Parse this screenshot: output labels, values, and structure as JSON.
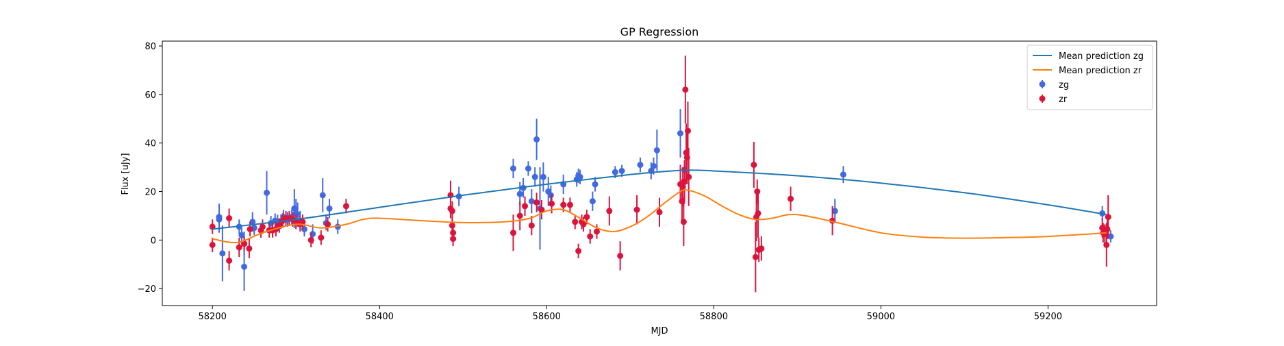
{
  "chart_data": {
    "type": "scatter",
    "title": "GP Regression",
    "xlabel": "MJD",
    "ylabel": "Flux [uJy]",
    "xlim": [
      58140,
      59330
    ],
    "ylim": [
      -27,
      82
    ],
    "xticks": [
      58200,
      58400,
      58600,
      58800,
      59000,
      59200
    ],
    "yticks": [
      -20,
      0,
      20,
      40,
      60,
      80
    ],
    "grid": false,
    "legend_position": "top-right",
    "series": [
      {
        "name": "Mean prediction zg",
        "kind": "line",
        "color": "#1f77b4",
        "x": [
          58200,
          58300,
          58400,
          58500,
          58600,
          58700,
          58750,
          58770,
          58800,
          58900,
          59000,
          59100,
          59200,
          59270
        ],
        "y": [
          4.5,
          8.5,
          13.5,
          18.5,
          23,
          27,
          28.5,
          28.8,
          28.5,
          26.5,
          23.5,
          19.5,
          14.5,
          10.5
        ]
      },
      {
        "name": "Mean prediction zr",
        "kind": "line",
        "color": "#ff7f0e",
        "x": [
          58200,
          58230,
          58260,
          58300,
          58330,
          58360,
          58380,
          58400,
          58450,
          58500,
          58550,
          58580,
          58600,
          58620,
          58640,
          58660,
          58680,
          58700,
          58720,
          58740,
          58760,
          58770,
          58790,
          58810,
          58830,
          58850,
          58870,
          58890,
          58910,
          58950,
          59000,
          59050,
          59100,
          59150,
          59200,
          59250,
          59270
        ],
        "y": [
          0.5,
          -1,
          3,
          6.5,
          5,
          6.5,
          8.5,
          9,
          8,
          7.2,
          7.5,
          9,
          12,
          12.5,
          9,
          5,
          3.5,
          5.5,
          9.5,
          15,
          20,
          20.5,
          18,
          14,
          10.5,
          8.5,
          9,
          10.5,
          10,
          7,
          3,
          1.2,
          0.8,
          1,
          1.5,
          2.5,
          3
        ]
      },
      {
        "name": "zg",
        "kind": "errorbar",
        "color": "#4169e1",
        "x": [
          58208,
          58208,
          58212,
          58232,
          58235,
          58238,
          58238,
          58248,
          58250,
          58265,
          58270,
          58275,
          58278,
          58282,
          58285,
          58290,
          58295,
          58298,
          58300,
          58302,
          58305,
          58310,
          58320,
          58332,
          58336,
          58340,
          58350,
          58495,
          58560,
          58568,
          58572,
          58578,
          58582,
          58586,
          58588,
          58592,
          58596,
          58602,
          58605,
          58620,
          58636,
          58638,
          58640,
          58655,
          58658,
          58682,
          58690,
          58712,
          58725,
          58728,
          58732,
          58760,
          58765,
          58945,
          58955,
          59265,
          59275
        ],
        "y": [
          9.5,
          8.5,
          -5.5,
          5.5,
          2,
          -11,
          -1.5,
          7.5,
          5,
          19.5,
          7,
          8,
          7.5,
          7.5,
          9.5,
          8.5,
          9.5,
          13,
          11,
          10.5,
          8,
          4.5,
          2.5,
          18.5,
          7,
          13,
          5.5,
          18,
          29.5,
          19,
          21.5,
          29.5,
          16,
          26,
          41.5,
          13,
          26,
          20,
          18.5,
          23,
          25,
          26.5,
          26,
          16,
          23,
          28,
          28.5,
          31,
          28.5,
          30.5,
          37,
          44,
          29,
          12,
          27,
          11,
          1.5
        ],
        "err": [
          5.5,
          5.5,
          11.5,
          3,
          3,
          10,
          5,
          4,
          3,
          9,
          3,
          3,
          3,
          3,
          3,
          3,
          3,
          8,
          6,
          5,
          4,
          3,
          4,
          7,
          3,
          4,
          3,
          4,
          4,
          5,
          4,
          3,
          5,
          4,
          8.5,
          17,
          6,
          6,
          4,
          4,
          3,
          3,
          3,
          4,
          3,
          2.5,
          2.5,
          3,
          3.5,
          3.5,
          8.5,
          10,
          4,
          5,
          3.5,
          3,
          2.5
        ]
      },
      {
        "name": "zr",
        "kind": "errorbar",
        "color": "#dc143c",
        "x": [
          58200,
          58200,
          58220,
          58220,
          58232,
          58238,
          58244,
          58245,
          58258,
          58260,
          58268,
          58272,
          58276,
          58280,
          58284,
          58288,
          58292,
          58296,
          58300,
          58305,
          58308,
          58318,
          58330,
          58338,
          58360,
          58485,
          58485,
          58487,
          58487,
          58488,
          58488,
          58560,
          58568,
          58574,
          58582,
          58588,
          58594,
          58606,
          58620,
          58628,
          58634,
          58638,
          58642,
          58644,
          58648,
          58652,
          58660,
          58675,
          58688,
          58708,
          58735,
          58760,
          58762,
          58763,
          58764,
          58765,
          58766,
          58767,
          58768,
          58769,
          58770,
          58848,
          58850,
          58851,
          58852,
          58853,
          58854,
          58857,
          58892,
          58942,
          59265,
          59266,
          59268,
          59270,
          59271,
          59272
        ],
        "y": [
          5.5,
          -2,
          9,
          -8.5,
          -3,
          -1.5,
          -3.5,
          4.5,
          4,
          5.5,
          4,
          4,
          4.5,
          6,
          8,
          9,
          9,
          8.5,
          7.5,
          6.5,
          7.5,
          0,
          1,
          6.5,
          14,
          18.5,
          13,
          12,
          6,
          3,
          0.5,
          3,
          10,
          14,
          6,
          15.5,
          12.5,
          15,
          14.5,
          14.5,
          7.5,
          -4.5,
          7.5,
          6.5,
          9.5,
          1.5,
          3.5,
          12,
          -6.5,
          12.5,
          11.5,
          23,
          16,
          22,
          7.5,
          24,
          62,
          36,
          34,
          45,
          26,
          31,
          -7,
          9.5,
          20,
          11,
          -4,
          -3.5,
          17,
          8,
          5,
          3,
          2.5,
          -2,
          4.5,
          9.5
        ],
        "err": [
          3,
          3,
          4,
          4,
          4,
          3,
          4,
          3,
          3,
          3,
          3,
          3,
          3,
          3,
          3,
          3,
          3,
          3,
          3,
          3,
          3,
          3,
          3,
          3,
          3,
          6,
          4,
          4,
          4,
          3,
          3,
          7.5,
          6,
          4,
          4,
          4,
          4,
          4,
          3,
          3,
          3,
          3,
          3,
          3,
          3,
          3,
          3,
          6,
          6,
          6,
          6,
          8,
          9,
          8,
          10,
          9,
          14,
          12,
          11,
          12,
          12,
          9.5,
          14.5,
          10,
          5,
          10,
          5,
          5,
          5,
          6,
          4,
          4,
          4,
          9,
          4,
          9
        ]
      }
    ]
  }
}
